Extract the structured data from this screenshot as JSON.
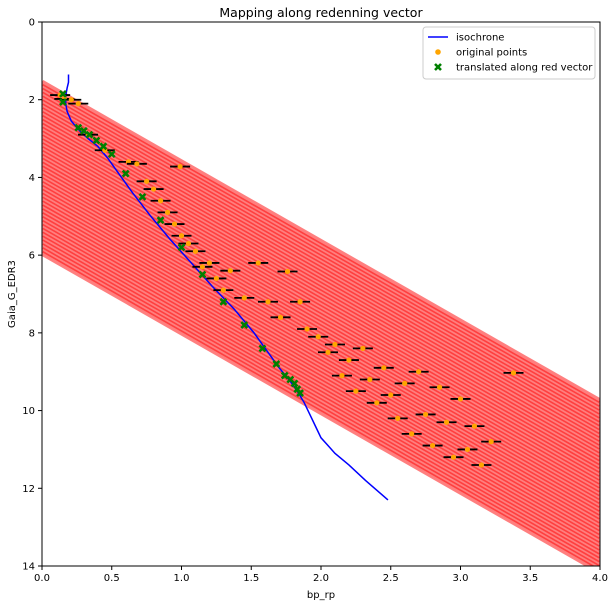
{
  "chart_data": {
    "type": "scatter",
    "title": "Mapping along redenning vector",
    "xlabel": "bp_rp",
    "ylabel": "Gaia_G_EDR3",
    "xlim": [
      0,
      4.0
    ],
    "ylim": [
      14,
      0
    ],
    "y_inverted": true,
    "x_ticks": [
      "0.0",
      "0.5",
      "1.0",
      "1.5",
      "2.0",
      "2.5",
      "3.0",
      "3.5",
      "4.0"
    ],
    "y_ticks": [
      "0",
      "2",
      "4",
      "6",
      "8",
      "10",
      "12",
      "14"
    ],
    "legend_position": "top-right",
    "legend": [
      {
        "label": "isochrone",
        "marker": "line",
        "color": "#0000ff"
      },
      {
        "label": "original points",
        "marker": "circle",
        "color": "#ffa500"
      },
      {
        "label": "translated along red vector",
        "marker": "x",
        "color": "#008000"
      }
    ],
    "series": [
      {
        "name": "isochrone",
        "type": "line",
        "color": "#0000ff",
        "x": [
          0.19,
          0.19,
          0.18,
          0.17,
          0.17,
          0.18,
          0.21,
          0.27,
          0.33,
          0.4,
          0.47,
          0.55,
          0.65,
          0.78,
          0.92,
          1.07,
          1.22,
          1.38,
          1.52,
          1.62,
          1.7,
          1.77,
          1.83,
          1.88,
          1.92,
          1.96,
          2.0,
          2.05,
          2.1,
          2.2,
          2.32,
          2.48
        ],
        "y": [
          1.35,
          1.55,
          1.7,
          1.9,
          2.1,
          2.3,
          2.55,
          2.8,
          3.0,
          3.2,
          3.5,
          3.9,
          4.4,
          5.0,
          5.6,
          6.2,
          6.8,
          7.4,
          8.0,
          8.5,
          8.9,
          9.2,
          9.5,
          9.8,
          10.1,
          10.4,
          10.7,
          10.9,
          11.1,
          11.4,
          11.8,
          12.3
        ]
      },
      {
        "name": "original points",
        "type": "scatter",
        "color": "#ffa500",
        "x": [
          0.13,
          0.16,
          0.21,
          0.26,
          0.33,
          0.45,
          0.62,
          0.68,
          0.99,
          0.75,
          0.8,
          0.85,
          0.9,
          0.95,
          1.0,
          1.05,
          1.1,
          1.15,
          1.2,
          1.25,
          1.3,
          1.35,
          1.45,
          1.55,
          1.62,
          1.71,
          1.76,
          1.85,
          1.9,
          1.98,
          2.05,
          2.1,
          2.15,
          2.2,
          2.25,
          2.3,
          2.35,
          2.4,
          2.45,
          2.5,
          2.55,
          2.6,
          2.65,
          2.7,
          2.75,
          2.8,
          2.85,
          2.9,
          2.95,
          3.0,
          3.05,
          3.1,
          3.15,
          3.22,
          3.38
        ],
        "y": [
          1.88,
          1.98,
          2.0,
          2.1,
          2.9,
          3.3,
          3.6,
          3.65,
          3.72,
          4.1,
          4.3,
          4.6,
          4.9,
          5.2,
          5.5,
          5.7,
          5.9,
          6.3,
          6.2,
          6.6,
          6.9,
          6.4,
          7.1,
          6.2,
          7.2,
          7.6,
          6.42,
          7.2,
          7.9,
          8.1,
          8.5,
          8.3,
          9.1,
          8.7,
          9.5,
          8.4,
          9.2,
          9.8,
          8.9,
          9.6,
          10.2,
          9.3,
          10.6,
          9.0,
          10.1,
          10.9,
          9.4,
          10.3,
          11.2,
          9.7,
          11.0,
          10.4,
          11.4,
          10.8,
          9.03
        ]
      },
      {
        "name": "translated along red vector",
        "type": "scatter",
        "color": "#008000",
        "x": [
          0.15,
          0.15,
          0.26,
          0.3,
          0.34,
          0.39,
          0.44,
          0.5,
          0.6,
          0.72,
          0.85,
          1.0,
          1.15,
          1.3,
          1.45,
          1.58,
          1.68,
          1.74,
          1.78,
          1.81,
          1.83,
          1.85
        ],
        "y": [
          1.85,
          2.06,
          2.72,
          2.8,
          2.9,
          3.05,
          3.2,
          3.4,
          3.9,
          4.5,
          5.1,
          5.8,
          6.5,
          7.2,
          7.8,
          8.4,
          8.8,
          9.1,
          9.2,
          9.3,
          9.45,
          9.55
        ]
      }
    ],
    "reddening_vectors": {
      "color": "#ff0000",
      "slope_mag_per_color": 2.05,
      "y_at_x0": [
        1.55,
        1.65,
        1.75,
        1.85,
        1.95,
        2.05,
        2.15,
        2.25,
        2.35,
        2.45,
        2.55,
        2.65,
        2.75,
        2.85,
        2.95,
        3.05,
        3.15,
        3.25,
        3.35,
        3.45,
        3.55,
        3.65,
        3.75,
        3.85,
        3.95,
        4.05,
        4.15,
        4.25,
        4.35,
        4.45,
        4.55,
        4.65,
        4.75,
        4.85,
        4.95,
        5.05,
        5.15,
        5.25,
        5.35,
        5.45,
        5.55,
        5.65,
        5.75,
        5.85,
        5.95
      ]
    }
  }
}
